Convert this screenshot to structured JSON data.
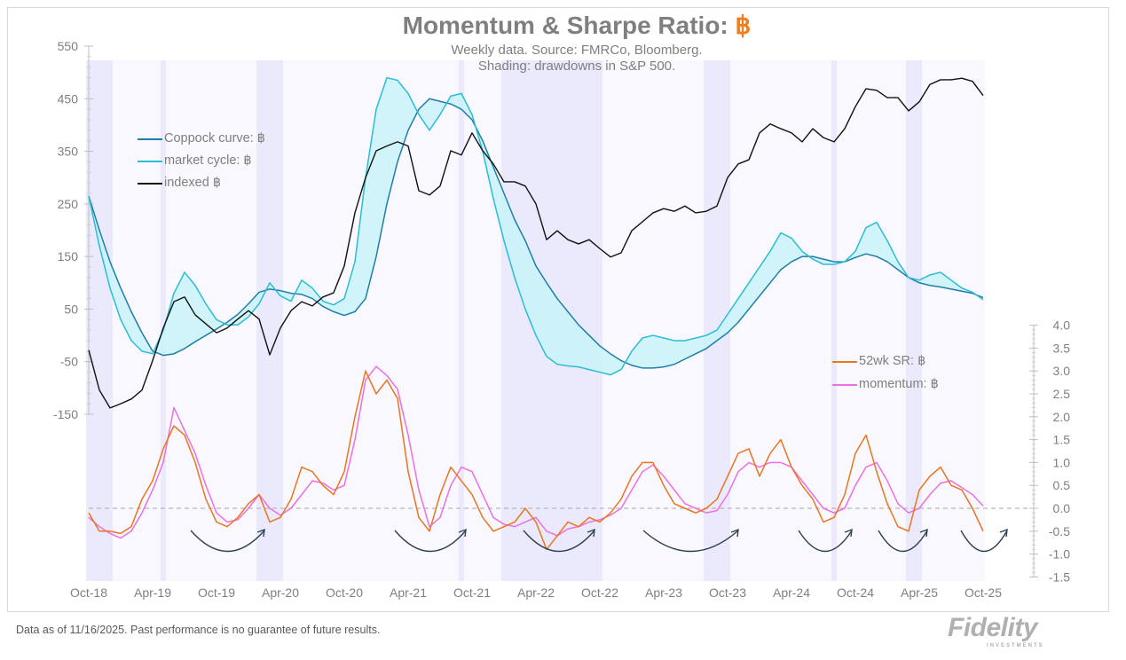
{
  "title": {
    "text": "Momentum & Sharpe Ratio:",
    "symbol": "฿"
  },
  "subtitle_1": "Weekly data.  Source: FMRCo, Bloomberg.",
  "subtitle_2": "Shading: drawdowns in S&P 500.",
  "footer": "Data as of 11/16/2025. Past performance is no guarantee of future results.",
  "logo": {
    "name": "Fidelity",
    "tagline": "INVESTMENTS"
  },
  "colors": {
    "coppock": "#1f7ea8",
    "market_cycle": "#2bbcd6",
    "fill": "#c9f3f8",
    "indexed": "#111111",
    "sr": "#ea7520",
    "momentum": "#ee6fe3",
    "shading": "#e6e6fb"
  },
  "chart_data": {
    "type": "line",
    "x_ticks": [
      "Oct-18",
      "Apr-19",
      "Oct-19",
      "Apr-20",
      "Oct-20",
      "Apr-21",
      "Oct-21",
      "Apr-22",
      "Oct-22",
      "Apr-23",
      "Oct-23",
      "Apr-24",
      "Oct-24",
      "Apr-25",
      "Oct-25"
    ],
    "x_start": "2018-10",
    "left_axis": {
      "ticks": [
        550,
        450,
        350,
        250,
        150,
        50,
        -50,
        -150
      ],
      "ylim": [
        -150,
        550
      ]
    },
    "right_axis": {
      "ticks": [
        "4.0",
        "3.5",
        "3.0",
        "2.5",
        "2.0",
        "1.5",
        "1.0",
        "0.5",
        "0.0",
        "-0.5",
        "-1.0",
        "-1.5"
      ],
      "ylim": [
        -1.5,
        4.0
      ],
      "zero_line": "dashed"
    },
    "shading_periods": [
      [
        "2018-10",
        "2018-12"
      ],
      [
        "2019-05",
        "2019-05"
      ],
      [
        "2020-02",
        "2020-04"
      ],
      [
        "2021-09",
        "2021-09"
      ],
      [
        "2022-01",
        "2022-10"
      ],
      [
        "2023-08",
        "2023-10"
      ],
      [
        "2024-08",
        "2024-08"
      ],
      [
        "2025-03",
        "2025-04"
      ]
    ],
    "legend_left": [
      "Coppock curve: ฿",
      "market cycle: ฿",
      "indexed ฿"
    ],
    "legend_right": [
      "52wk SR: ฿",
      "momentum: ฿"
    ],
    "series": [
      {
        "name": "Coppock curve: ฿",
        "axis": "left",
        "values": [
          265,
          200,
          140,
          90,
          45,
          5,
          -30,
          -38,
          -35,
          -25,
          -12,
          0,
          12,
          25,
          40,
          60,
          82,
          88,
          85,
          80,
          78,
          70,
          55,
          45,
          38,
          45,
          70,
          150,
          250,
          330,
          390,
          430,
          450,
          445,
          440,
          430,
          410,
          370,
          320,
          270,
          220,
          180,
          132,
          100,
          70,
          45,
          20,
          0,
          -20,
          -35,
          -48,
          -57,
          -62,
          -62,
          -60,
          -55,
          -45,
          -35,
          -25,
          -10,
          5,
          25,
          50,
          75,
          100,
          125,
          140,
          150,
          150,
          145,
          140,
          140,
          148,
          155,
          150,
          140,
          125,
          110,
          100,
          95,
          92,
          88,
          84,
          80,
          72
        ]
      },
      {
        "name": "market cycle: ฿",
        "axis": "left",
        "values": [
          265,
          170,
          90,
          30,
          -10,
          -30,
          -35,
          10,
          80,
          120,
          95,
          60,
          30,
          20,
          20,
          35,
          60,
          100,
          75,
          65,
          105,
          90,
          65,
          58,
          70,
          140,
          300,
          430,
          490,
          485,
          460,
          420,
          390,
          420,
          455,
          460,
          420,
          350,
          260,
          180,
          110,
          50,
          0,
          -40,
          -55,
          -58,
          -60,
          -65,
          -70,
          -75,
          -65,
          -30,
          -5,
          0,
          -5,
          -10,
          -10,
          -5,
          0,
          10,
          40,
          70,
          100,
          130,
          160,
          195,
          185,
          160,
          145,
          135,
          135,
          140,
          160,
          205,
          215,
          180,
          140,
          110,
          105,
          115,
          120,
          105,
          90,
          82,
          68
        ]
      },
      {
        "name": "indexed ฿",
        "axis": "left",
        "values": [
          -28,
          -104,
          -138,
          -130,
          -121,
          -104,
          -48,
          14,
          64,
          73,
          39,
          22,
          5,
          14,
          31,
          47,
          31,
          -37,
          14,
          47,
          64,
          56,
          73,
          81,
          132,
          233,
          300,
          351,
          360,
          368,
          360,
          275,
          267,
          284,
          351,
          343,
          385,
          351,
          326,
          292,
          292,
          284,
          250,
          182,
          199,
          182,
          174,
          182,
          165,
          149,
          157,
          199,
          216,
          233,
          241,
          236,
          246,
          233,
          236,
          246,
          300,
          326,
          334,
          385,
          402,
          393,
          385,
          368,
          393,
          376,
          368,
          393,
          435,
          469,
          466,
          452,
          452,
          427,
          444,
          477,
          486,
          486,
          489,
          483,
          456
        ]
      },
      {
        "name": "52wk SR: ฿",
        "axis": "right",
        "values": [
          -0.1,
          -0.5,
          -0.5,
          -0.55,
          -0.4,
          0.2,
          0.6,
          1.3,
          1.8,
          1.6,
          1.0,
          0.2,
          -0.3,
          -0.4,
          -0.2,
          0.1,
          0.3,
          -0.3,
          -0.2,
          0.2,
          0.9,
          0.8,
          0.5,
          0.3,
          0.8,
          2.0,
          3.0,
          2.5,
          2.8,
          2.4,
          0.8,
          -0.2,
          -0.5,
          0.3,
          0.9,
          0.6,
          0.3,
          -0.2,
          -0.5,
          -0.4,
          -0.3,
          0.0,
          -0.3,
          -0.9,
          -0.6,
          -0.3,
          -0.4,
          -0.2,
          -0.3,
          -0.1,
          0.2,
          0.7,
          1.0,
          1.0,
          0.5,
          0.1,
          0.0,
          -0.1,
          0.0,
          0.2,
          0.7,
          1.2,
          1.3,
          0.7,
          1.2,
          1.5,
          0.9,
          0.5,
          0.2,
          -0.3,
          -0.2,
          0.3,
          1.2,
          1.6,
          0.8,
          0.1,
          -0.4,
          -0.5,
          0.4,
          0.7,
          0.9,
          0.5,
          0.4,
          0.0,
          -0.5
        ]
      },
      {
        "name": "momentum: ฿",
        "axis": "right",
        "values": [
          -0.2,
          -0.4,
          -0.55,
          -0.65,
          -0.5,
          -0.1,
          0.4,
          1.0,
          2.2,
          1.7,
          1.2,
          0.5,
          -0.1,
          -0.3,
          -0.25,
          0.0,
          0.3,
          0.0,
          -0.15,
          0.0,
          0.3,
          0.6,
          0.55,
          0.4,
          0.5,
          1.5,
          2.8,
          3.1,
          2.9,
          2.6,
          1.6,
          0.4,
          -0.4,
          -0.2,
          0.5,
          0.9,
          0.8,
          0.3,
          -0.2,
          -0.35,
          -0.4,
          -0.3,
          -0.2,
          -0.5,
          -0.6,
          -0.45,
          -0.4,
          -0.3,
          -0.25,
          -0.15,
          0.0,
          0.4,
          0.8,
          0.95,
          0.7,
          0.4,
          0.1,
          0.0,
          -0.1,
          -0.05,
          0.3,
          0.8,
          1.0,
          0.9,
          1.0,
          1.0,
          0.9,
          0.6,
          0.3,
          0.0,
          -0.1,
          0.0,
          0.5,
          0.9,
          1.0,
          0.6,
          0.1,
          -0.1,
          0.0,
          0.3,
          0.55,
          0.6,
          0.45,
          0.3,
          0.05
        ]
      }
    ]
  }
}
